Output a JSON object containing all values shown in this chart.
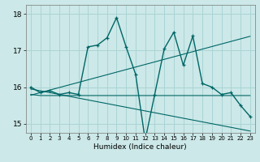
{
  "title": "",
  "xlabel": "Humidex (Indice chaleur)",
  "background_color": "#cce8e8",
  "grid_color": "#aad4d4",
  "line_color": "#006666",
  "xlim": [
    -0.5,
    23.5
  ],
  "ylim": [
    14.75,
    18.25
  ],
  "yticks": [
    15,
    16,
    17,
    18
  ],
  "xticks": [
    0,
    1,
    2,
    3,
    4,
    5,
    6,
    7,
    8,
    9,
    10,
    11,
    12,
    13,
    14,
    15,
    16,
    17,
    18,
    19,
    20,
    21,
    22,
    23
  ],
  "humidex_data": [
    16.0,
    15.85,
    15.9,
    15.8,
    15.85,
    15.8,
    17.1,
    17.15,
    17.35,
    17.9,
    17.1,
    16.35,
    14.55,
    15.8,
    17.05,
    17.5,
    16.6,
    17.4,
    16.1,
    16.0,
    15.8,
    15.85,
    15.5,
    15.2
  ],
  "flat_line": [
    15.8,
    15.77,
    15.77,
    15.77,
    15.77,
    15.77,
    15.77,
    15.77,
    15.77,
    15.77,
    15.77,
    15.77,
    15.77,
    15.77,
    15.77,
    15.77,
    15.77,
    15.77,
    15.77,
    15.77,
    15.77,
    15.77,
    15.77,
    15.77
  ],
  "trend_up": [
    15.78,
    15.85,
    15.92,
    15.99,
    16.06,
    16.13,
    16.2,
    16.27,
    16.34,
    16.41,
    16.48,
    16.55,
    16.62,
    16.69,
    16.76,
    16.83,
    16.9,
    16.97,
    17.04,
    17.11,
    17.18,
    17.25,
    17.32,
    17.39
  ],
  "trend_down": [
    15.95,
    15.9,
    15.85,
    15.8,
    15.75,
    15.7,
    15.65,
    15.6,
    15.55,
    15.5,
    15.45,
    15.4,
    15.35,
    15.3,
    15.25,
    15.2,
    15.15,
    15.1,
    15.05,
    15.0,
    14.95,
    14.9,
    14.85,
    14.8
  ]
}
